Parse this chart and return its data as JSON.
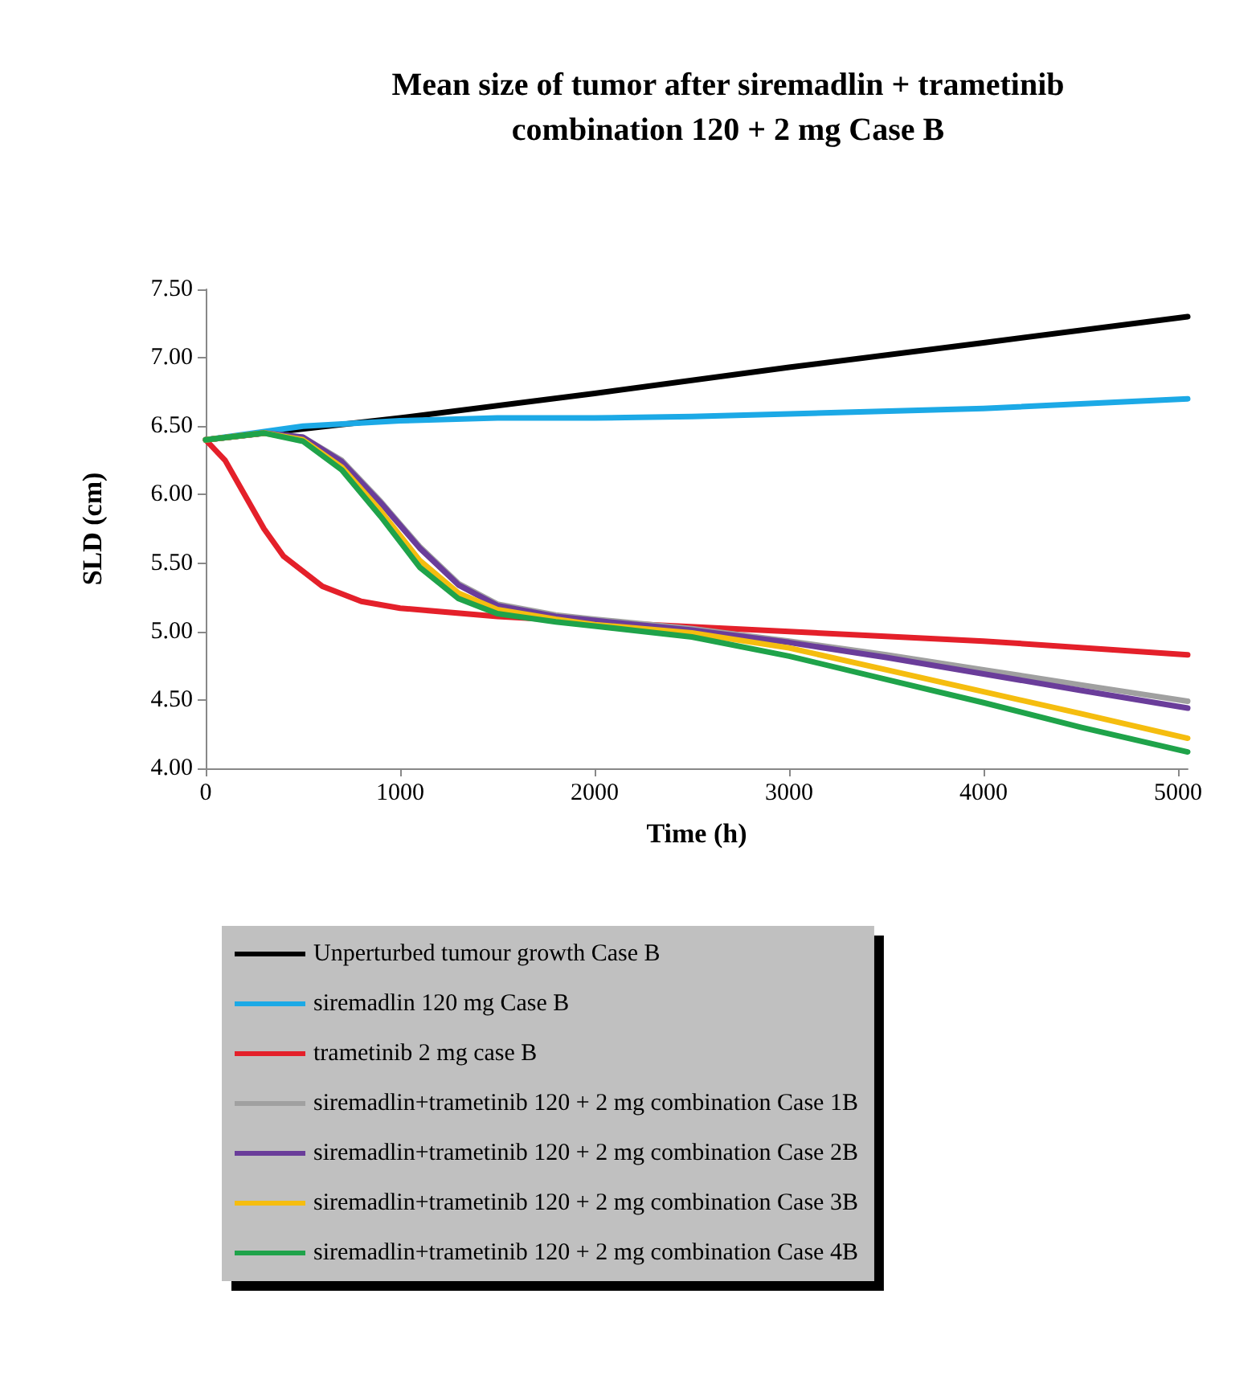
{
  "chart_data": {
    "type": "line",
    "title": "Mean size of tumor after siremadlin + trametinib\ncombination 120 + 2 mg Case B",
    "xlabel": "Time (h)",
    "ylabel": "SLD (cm)",
    "xlim": [
      0,
      5050
    ],
    "xticks": [
      0,
      1000,
      2000,
      3000,
      4000,
      5000
    ],
    "ylim": [
      4,
      7.5
    ],
    "yticks": [
      {
        "value": 4,
        "label": "4.00"
      },
      {
        "value": 4.5,
        "label": "4.50"
      },
      {
        "value": 5,
        "label": "5.00"
      },
      {
        "value": 5.5,
        "label": "5.50"
      },
      {
        "value": 6,
        "label": "6.00"
      },
      {
        "value": 6.5,
        "label": "6.50"
      },
      {
        "value": 7,
        "label": "7.00"
      },
      {
        "value": 7.5,
        "label": "7.50"
      }
    ],
    "grid": false,
    "legend": "bottom",
    "marker": "none",
    "line_style": "solid",
    "series": [
      {
        "name": "Unperturbed tumour growth Case B",
        "color": "#000000",
        "x": [
          0,
          1000,
          2000,
          3000,
          4000,
          5050
        ],
        "values": [
          6.4,
          6.56,
          6.74,
          6.93,
          7.11,
          7.3
        ]
      },
      {
        "name": "siremadlin 120 mg Case B",
        "color": "#1ca9e6",
        "x": [
          0,
          500,
          1000,
          1500,
          2000,
          2500,
          3000,
          4000,
          5050
        ],
        "values": [
          6.4,
          6.5,
          6.54,
          6.56,
          6.56,
          6.57,
          6.59,
          6.63,
          6.7
        ]
      },
      {
        "name": "trametinib 2 mg case B",
        "color": "#e4202a",
        "x": [
          0,
          100,
          200,
          300,
          400,
          600,
          800,
          1000,
          1500,
          2000,
          3000,
          4000,
          5050
        ],
        "values": [
          6.4,
          6.25,
          6.0,
          5.75,
          5.55,
          5.33,
          5.22,
          5.17,
          5.11,
          5.07,
          5.0,
          4.93,
          4.83
        ]
      },
      {
        "name": "siremadlin+trametinib 120 + 2 mg combination Case 1B",
        "color": "#a0a0a0",
        "x": [
          0,
          300,
          500,
          700,
          900,
          1100,
          1300,
          1500,
          1800,
          2000,
          2500,
          3000,
          3500,
          4000,
          4500,
          5050
        ],
        "values": [
          6.4,
          6.45,
          6.42,
          6.25,
          5.95,
          5.62,
          5.35,
          5.2,
          5.12,
          5.09,
          5.02,
          4.93,
          4.83,
          4.72,
          4.61,
          4.49
        ]
      },
      {
        "name": "siremadlin+trametinib 120 + 2 mg combination Case 2B",
        "color": "#6a3d9a",
        "x": [
          0,
          300,
          500,
          700,
          900,
          1100,
          1300,
          1500,
          1800,
          2000,
          2500,
          3000,
          3500,
          4000,
          4500,
          5050
        ],
        "values": [
          6.4,
          6.45,
          6.42,
          6.24,
          5.94,
          5.61,
          5.34,
          5.19,
          5.11,
          5.08,
          5.01,
          4.92,
          4.81,
          4.69,
          4.57,
          4.44
        ]
      },
      {
        "name": "siremadlin+trametinib 120 + 2 mg combination Case 3B",
        "color": "#f5bd0f",
        "x": [
          0,
          300,
          500,
          700,
          900,
          1100,
          1300,
          1500,
          1800,
          2000,
          2500,
          3000,
          3500,
          4000,
          4500,
          5050
        ],
        "values": [
          6.4,
          6.45,
          6.4,
          6.2,
          5.88,
          5.52,
          5.28,
          5.16,
          5.09,
          5.05,
          4.99,
          4.88,
          4.72,
          4.56,
          4.4,
          4.22
        ]
      },
      {
        "name": "siremadlin+trametinib 120 + 2 mg combination Case 4B",
        "color": "#1fa34a",
        "x": [
          0,
          300,
          500,
          700,
          900,
          1100,
          1300,
          1500,
          1800,
          2000,
          2500,
          3000,
          3500,
          4000,
          4500,
          5050
        ],
        "values": [
          6.4,
          6.45,
          6.39,
          6.18,
          5.84,
          5.47,
          5.24,
          5.13,
          5.07,
          5.04,
          4.96,
          4.82,
          4.65,
          4.48,
          4.3,
          4.12
        ]
      }
    ]
  }
}
